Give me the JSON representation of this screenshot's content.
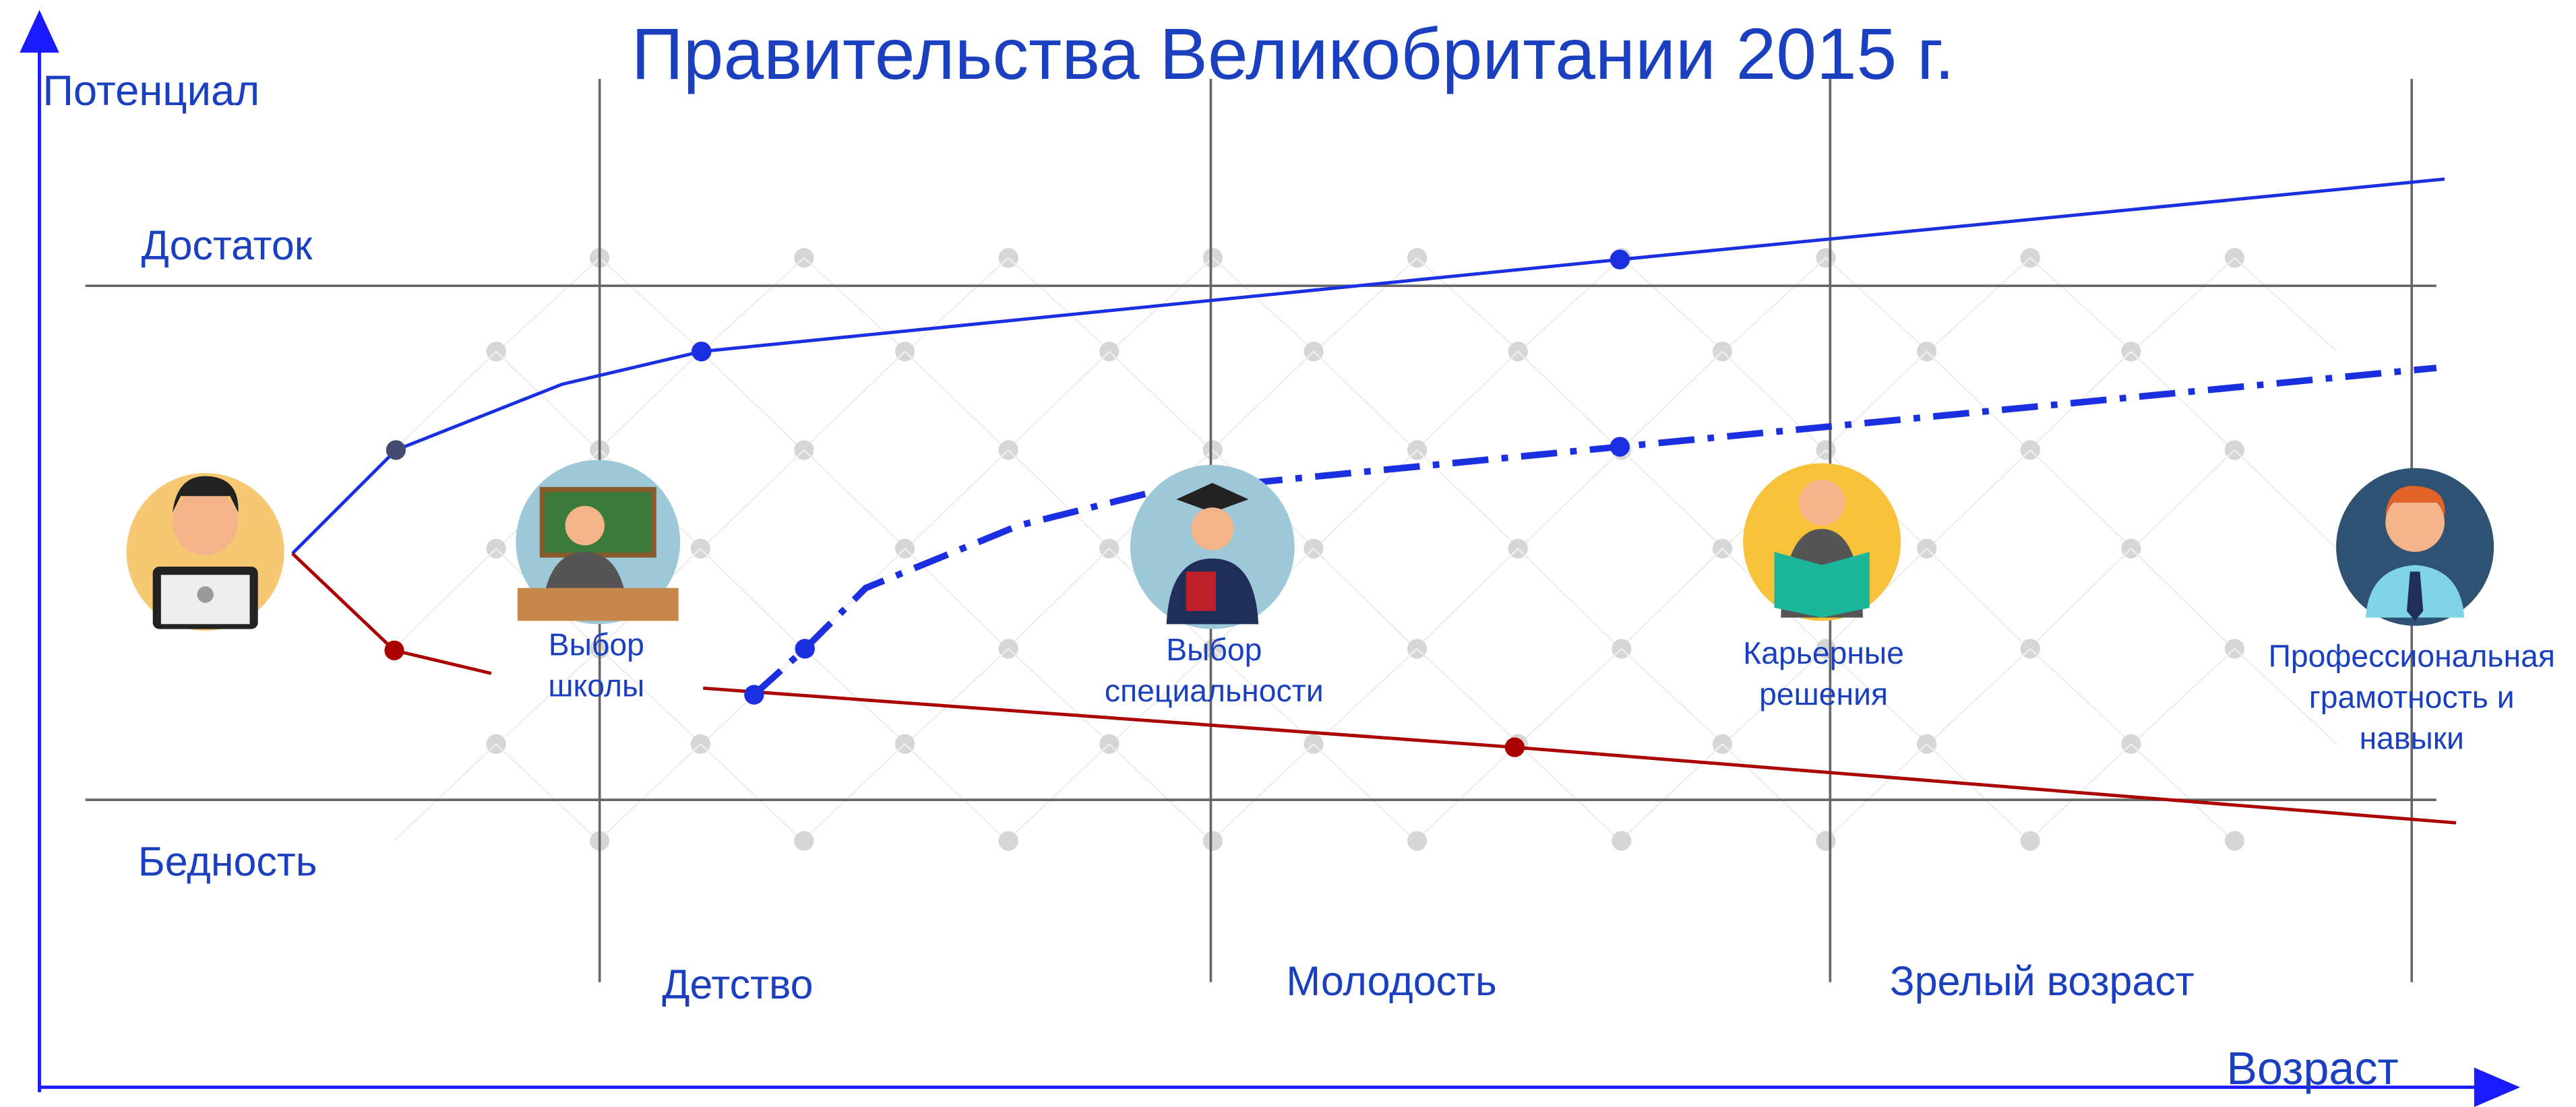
{
  "title": "Правительства Великобритании 2015 г.",
  "y_axis_label": "Потенциал",
  "x_axis_label": "Возраст",
  "levels": [
    "Достаток",
    "Бедность"
  ],
  "stages": [
    "Детство",
    "Молодость",
    "Зрелый возраст"
  ],
  "milestones": [
    [
      "Выбор",
      "школы"
    ],
    [
      "Выбор",
      "специальности"
    ],
    [
      "Карьерные",
      "решения"
    ],
    [
      "Профессиональная",
      "грамотность и",
      "навыки"
    ]
  ]
}
